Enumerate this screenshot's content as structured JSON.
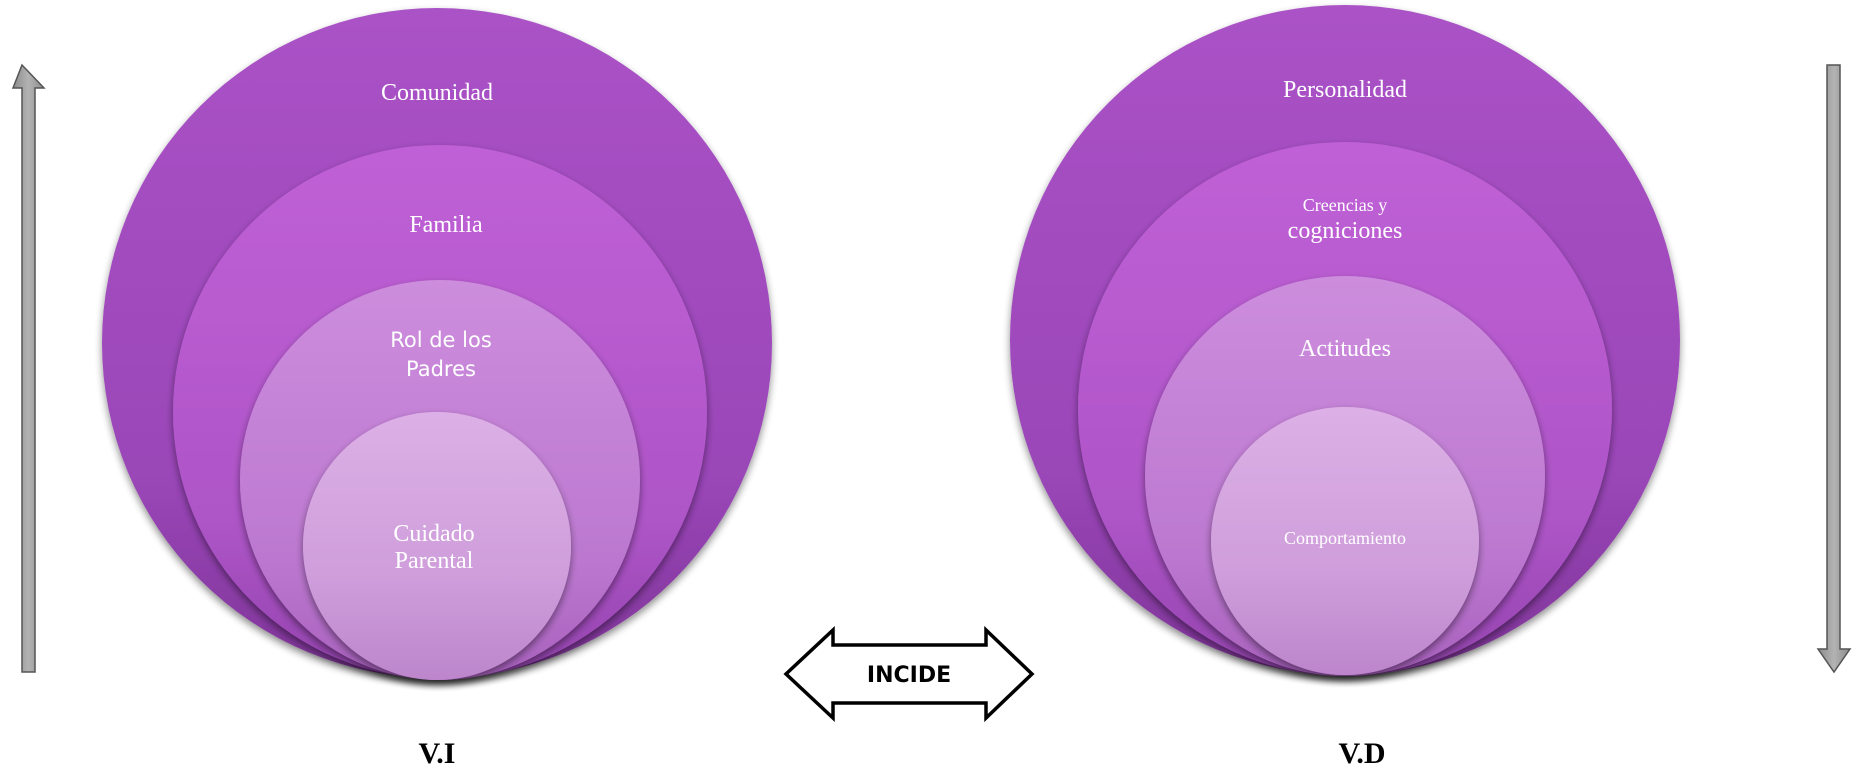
{
  "colors": {
    "outer": "#a04cbe",
    "second": "#b35fcd",
    "third": "#c483d5",
    "inner": "#d3a6de",
    "arrow_fill": "#a6a6a6",
    "arrow_stroke": "#555555"
  },
  "left_group": {
    "rings": [
      {
        "label_lines": [
          "Comunidad"
        ]
      },
      {
        "label_lines": [
          "Familia"
        ]
      },
      {
        "label_lines": [
          "Rol de los",
          "Padres"
        ]
      },
      {
        "label_lines": [
          "Cuidado",
          "Parental"
        ]
      }
    ],
    "variable_label": "V.I",
    "side_arrow_direction": "up"
  },
  "right_group": {
    "rings": [
      {
        "label_lines": [
          "Personalidad"
        ]
      },
      {
        "label_lines": [
          "Creencias y",
          "cogniciones"
        ]
      },
      {
        "label_lines": [
          "Actitudes"
        ]
      },
      {
        "label_lines": [
          "Comportamiento"
        ]
      }
    ],
    "variable_label": "V.D",
    "side_arrow_direction": "down"
  },
  "connector": {
    "label": "INCIDE",
    "shape": "double-headed-arrow"
  }
}
